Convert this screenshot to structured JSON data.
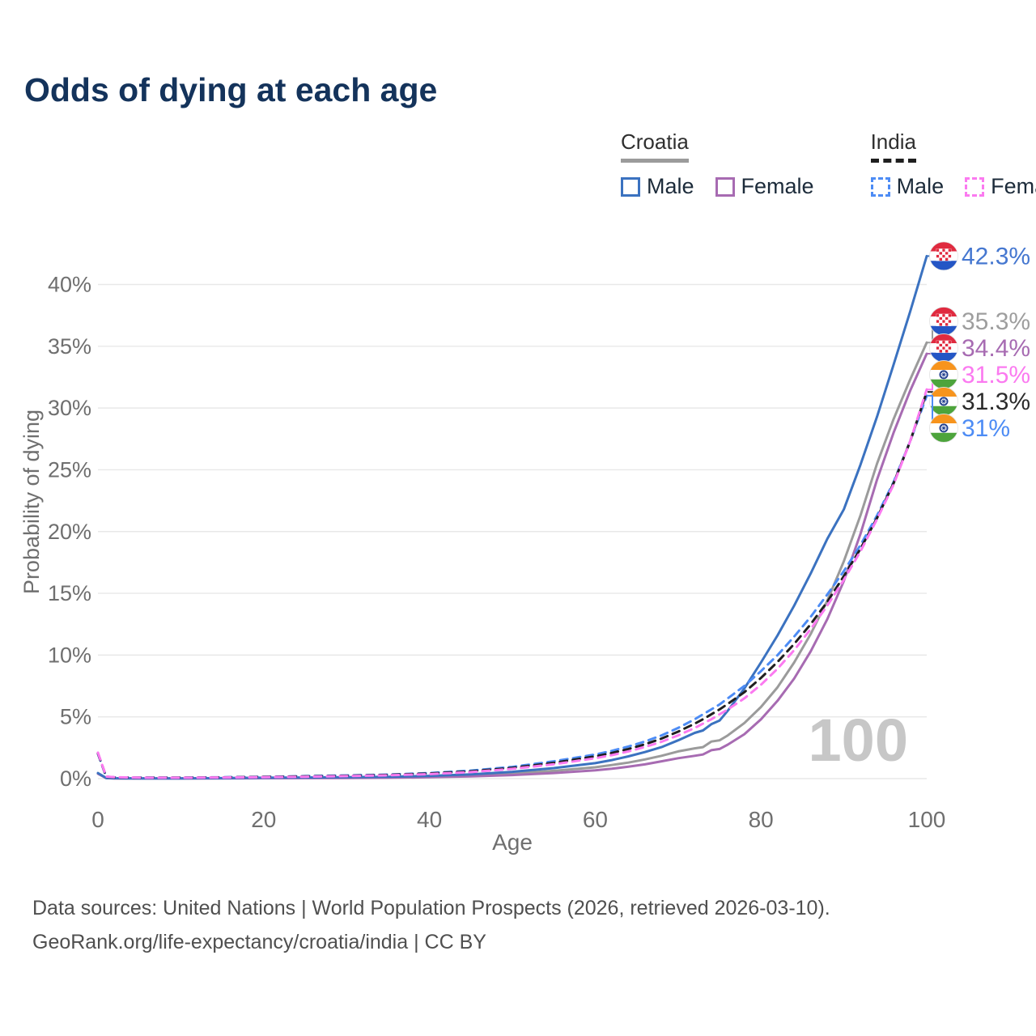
{
  "title": "Odds of dying at each age",
  "legend": {
    "groups": [
      {
        "label": "Croatia",
        "line_style": "solid",
        "underline_color": "#9b9b9b",
        "items": [
          {
            "label": "Male",
            "color": "#3b72c0",
            "style": "solid"
          },
          {
            "label": "Female",
            "color": "#a76bb2",
            "style": "solid"
          }
        ]
      },
      {
        "label": "India",
        "line_style": "dashed",
        "underline_color": "#1f1f1f",
        "items": [
          {
            "label": "Male",
            "color": "#4d8cf5",
            "style": "dashed"
          },
          {
            "label": "Female",
            "color": "#fb7af0",
            "style": "dashed"
          }
        ]
      }
    ]
  },
  "footer": {
    "line1": "Data sources: United Nations | World Population Prospects (2026, retrieved 2026-03-10).",
    "line2": "GeoRank.org/life-expectancy/croatia/india | CC BY"
  },
  "chart_data": {
    "type": "line",
    "title": "Odds of dying at each age",
    "xlabel": "Age",
    "ylabel": "Probability of dying",
    "xlim": [
      0,
      100
    ],
    "ylim": [
      0,
      42.5
    ],
    "x_ticks": [
      0,
      20,
      40,
      60,
      80,
      100
    ],
    "y_ticks": [
      0,
      5,
      10,
      15,
      20,
      25,
      30,
      35,
      40
    ],
    "y_tick_suffix": "%",
    "grid": "horizontal",
    "legend_position": "top-right",
    "watermark": "100",
    "ages": [
      0,
      1,
      2,
      5,
      10,
      15,
      20,
      25,
      30,
      35,
      40,
      45,
      50,
      55,
      60,
      62,
      64,
      66,
      68,
      70,
      72,
      73,
      74,
      75,
      76,
      78,
      80,
      82,
      84,
      86,
      88,
      90,
      92,
      94,
      96,
      98,
      100
    ],
    "series": [
      {
        "name": "Croatia",
        "flag": "hr",
        "style": "solid",
        "color": "#9b9b9b",
        "label_color": "#9e9e9e",
        "end_label": "35.3%",
        "values": [
          0.42,
          0.05,
          0.02,
          0.02,
          0.02,
          0.03,
          0.05,
          0.07,
          0.08,
          0.11,
          0.16,
          0.26,
          0.41,
          0.63,
          0.92,
          1.1,
          1.3,
          1.55,
          1.85,
          2.2,
          2.45,
          2.55,
          3.0,
          3.1,
          3.5,
          4.5,
          5.8,
          7.4,
          9.4,
          11.7,
          14.4,
          17.6,
          21.3,
          25.5,
          29.1,
          32.3,
          35.3
        ]
      },
      {
        "name": "Croatia Female",
        "flag": "hr",
        "style": "solid",
        "color": "#a76bb2",
        "label_color": "#a76bb2",
        "end_label": "34.4%",
        "values": [
          0.4,
          0.04,
          0.02,
          0.01,
          0.01,
          0.02,
          0.03,
          0.04,
          0.05,
          0.07,
          0.11,
          0.18,
          0.29,
          0.45,
          0.67,
          0.8,
          0.96,
          1.15,
          1.4,
          1.65,
          1.85,
          1.95,
          2.3,
          2.4,
          2.75,
          3.6,
          4.8,
          6.3,
          8.1,
          10.3,
          12.9,
          16.0,
          19.8,
          24.2,
          28.0,
          31.4,
          34.4
        ]
      },
      {
        "name": "Croatia Male",
        "flag": "hr",
        "style": "solid",
        "color": "#3b72c0",
        "label_color": "#4577d0",
        "end_label": "42.3%",
        "values": [
          0.45,
          0.05,
          0.03,
          0.02,
          0.02,
          0.04,
          0.07,
          0.09,
          0.11,
          0.15,
          0.22,
          0.35,
          0.55,
          0.85,
          1.25,
          1.5,
          1.8,
          2.15,
          2.55,
          3.1,
          3.7,
          3.9,
          4.4,
          4.7,
          5.5,
          7.3,
          9.4,
          11.6,
          14.0,
          16.6,
          19.4,
          21.8,
          25.4,
          29.3,
          33.5,
          37.8,
          42.3
        ]
      },
      {
        "name": "India Male",
        "flag": "in",
        "style": "dashed",
        "color": "#4d8cf5",
        "label_color": "#4d8cf5",
        "end_label": "31%",
        "values": [
          2.0,
          0.15,
          0.1,
          0.08,
          0.08,
          0.11,
          0.15,
          0.2,
          0.26,
          0.33,
          0.45,
          0.65,
          0.95,
          1.4,
          1.95,
          2.25,
          2.6,
          3.0,
          3.5,
          4.1,
          4.8,
          5.2,
          5.6,
          6.0,
          6.5,
          7.5,
          8.7,
          10.0,
          11.5,
          13.1,
          14.9,
          16.8,
          18.9,
          21.3,
          24.0,
          27.3,
          31.0
        ]
      },
      {
        "name": "India",
        "flag": "in",
        "style": "dashed",
        "color": "#1f1f1f",
        "label_color": "#2b2b2b",
        "end_label": "31.3%",
        "values": [
          2.05,
          0.16,
          0.1,
          0.08,
          0.08,
          0.1,
          0.14,
          0.18,
          0.23,
          0.3,
          0.41,
          0.59,
          0.87,
          1.28,
          1.8,
          2.08,
          2.4,
          2.78,
          3.24,
          3.8,
          4.45,
          4.8,
          5.2,
          5.6,
          6.05,
          7.0,
          8.15,
          9.45,
          10.9,
          12.5,
          14.3,
          16.4,
          18.6,
          21.1,
          23.9,
          27.3,
          31.3
        ]
      },
      {
        "name": "India Female",
        "flag": "in",
        "style": "dashed",
        "color": "#fb7af0",
        "label_color": "#fb7af0",
        "end_label": "31.5%",
        "values": [
          2.1,
          0.17,
          0.11,
          0.08,
          0.07,
          0.09,
          0.12,
          0.15,
          0.2,
          0.27,
          0.37,
          0.53,
          0.79,
          1.16,
          1.65,
          1.9,
          2.2,
          2.56,
          2.98,
          3.5,
          4.1,
          4.45,
          4.8,
          5.2,
          5.6,
          6.5,
          7.6,
          8.9,
          10.4,
          12.1,
          14.0,
          16.1,
          18.4,
          21.0,
          23.8,
          27.3,
          31.5
        ]
      }
    ],
    "flag_colors": {
      "hr": {
        "red": "#e02a3f",
        "white": "#ffffff",
        "blue": "#2456c5"
      },
      "in": {
        "saffron": "#f7941d",
        "white": "#ffffff",
        "green": "#4da43c",
        "navy": "#23408f"
      }
    },
    "axis_color": "#6f6f6f",
    "grid_color": "#e8e8e8",
    "watermark_color": "#c7c7c7"
  }
}
